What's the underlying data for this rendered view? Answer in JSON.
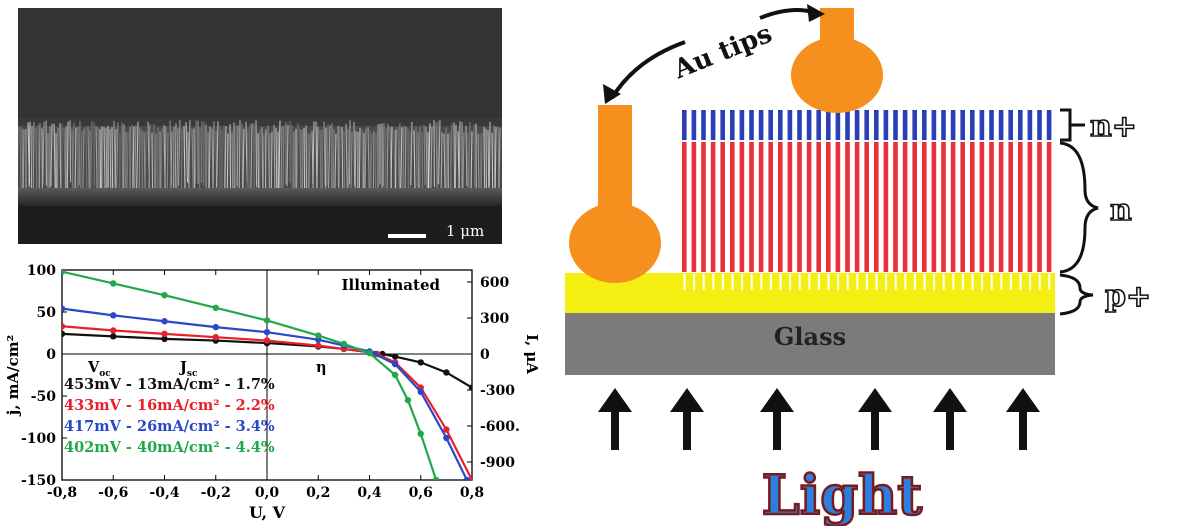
{
  "sem": {
    "scale_bar_label": "1 μm"
  },
  "chart_data": {
    "type": "line",
    "title": "Illuminated",
    "xlabel": "U, V",
    "ylabel_left": "j, mA/cm²",
    "ylabel_right": "I, μA",
    "xlim": [
      -0.8,
      0.8
    ],
    "ylim_left": [
      -150,
      100
    ],
    "ylim_right": [
      -1050,
      700
    ],
    "x_ticks": [
      "-0,8",
      "-0,6",
      "-0,4",
      "-0,2",
      "0,0",
      "0,2",
      "0,4",
      "0,6",
      "0,8"
    ],
    "y_ticks_left": [
      "100",
      "50",
      "0",
      "-50",
      "-100",
      "-150"
    ],
    "y_ticks_right": [
      "600",
      "300",
      "0",
      "-300",
      "-600.",
      "-900"
    ],
    "grid": false,
    "legend_header": {
      "voc": "V",
      "voc_sub": "oc",
      "jsc": "J",
      "jsc_sub": "sc",
      "eta": "η"
    },
    "series": [
      {
        "label": "453mV - 13mA/cm² - 1.7%",
        "color": "#111111",
        "voc": 0.453,
        "x": [
          -0.8,
          -0.6,
          -0.4,
          -0.2,
          0.0,
          0.2,
          0.3,
          0.4,
          0.45,
          0.5,
          0.6,
          0.7,
          0.8
        ],
        "y": [
          24,
          21,
          18,
          16,
          13,
          9,
          6,
          2,
          0,
          -3,
          -10,
          -22,
          -40
        ]
      },
      {
        "label": "433mV - 16mA/cm² - 2.2%",
        "color": "#e8202a",
        "voc": 0.433,
        "x": [
          -0.8,
          -0.6,
          -0.4,
          -0.2,
          0.0,
          0.2,
          0.3,
          0.4,
          0.43,
          0.5,
          0.6,
          0.7,
          0.8
        ],
        "y": [
          33,
          28,
          24,
          20,
          16,
          10,
          6,
          2,
          0,
          -10,
          -40,
          -90,
          -150
        ]
      },
      {
        "label": "417mV - 26mA/cm² - 3.4%",
        "color": "#2a48c8",
        "voc": 0.417,
        "x": [
          -0.8,
          -0.6,
          -0.4,
          -0.2,
          0.0,
          0.2,
          0.3,
          0.4,
          0.42,
          0.5,
          0.6,
          0.7,
          0.78
        ],
        "y": [
          54,
          46,
          39,
          32,
          26,
          17,
          10,
          3,
          0,
          -12,
          -45,
          -100,
          -150
        ]
      },
      {
        "label": "402mV - 40mA/cm² - 4.4%",
        "color": "#21a84a",
        "voc": 0.402,
        "x": [
          -0.8,
          -0.6,
          -0.4,
          -0.2,
          0.0,
          0.2,
          0.3,
          0.4,
          0.5,
          0.55,
          0.6,
          0.66
        ],
        "y": [
          98,
          84,
          70,
          55,
          40,
          22,
          12,
          1,
          -25,
          -55,
          -95,
          -150
        ]
      }
    ]
  },
  "diagram": {
    "label_au_tips": "Au tips",
    "label_n_plus": "n+",
    "label_n": "n",
    "label_p_plus": "p+",
    "label_glass": "Glass",
    "label_light": "Light",
    "colors": {
      "n_plus": "#2a3fb5",
      "n": "#e8303a",
      "p_plus": "#f4ee12",
      "glass": "#7b7b7b",
      "au": "#f5901e",
      "light": "#2b7fe0"
    }
  }
}
